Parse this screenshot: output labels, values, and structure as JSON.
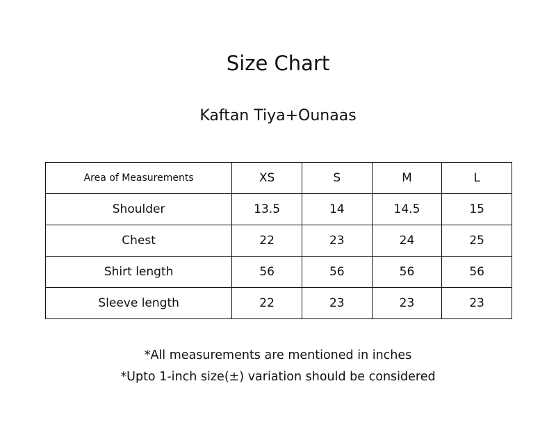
{
  "title": "Size Chart",
  "subtitle": "Kaftan Tiya+Ounaas",
  "table": {
    "headers": [
      "Area of Measurements",
      "XS",
      "S",
      "M",
      "L"
    ],
    "rows": [
      [
        "Shoulder",
        "13.5",
        "14",
        "14.5",
        "15"
      ],
      [
        "Chest",
        "22",
        "23",
        "24",
        "25"
      ],
      [
        "Shirt length",
        "56",
        "56",
        "56",
        "56"
      ],
      [
        "Sleeve length",
        "22",
        "23",
        "23",
        "23"
      ]
    ]
  },
  "notes": [
    "*All measurements are mentioned in inches",
    "*Upto 1-inch size(±) variation should be considered"
  ]
}
